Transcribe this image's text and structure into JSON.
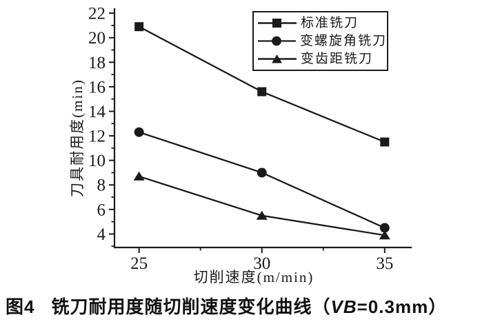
{
  "page": {
    "background": "#ffffff",
    "ink": "#1a1a1a"
  },
  "chart_data": {
    "type": "line",
    "title": "",
    "xlabel": "切削速度(m/min)",
    "ylabel": "刀具耐用度(min)",
    "x": [
      25,
      30,
      35
    ],
    "series": [
      {
        "name": "标准铣刀",
        "marker": "square",
        "values": [
          20.9,
          15.6,
          11.5
        ]
      },
      {
        "name": "变螺旋角铣刀",
        "marker": "circle",
        "values": [
          12.3,
          9.0,
          4.5
        ]
      },
      {
        "name": "变齿距铣刀",
        "marker": "triangle",
        "values": [
          8.7,
          5.5,
          3.9
        ]
      }
    ],
    "xlim": [
      24.0,
      36.1
    ],
    "ylim": [
      2.9,
      22.4
    ],
    "x_major_ticks": [
      25,
      30,
      35
    ],
    "x_minor_ticks": [
      27.5,
      32.5
    ],
    "y_major_ticks": [
      4,
      6,
      8,
      10,
      12,
      14,
      16,
      18,
      20,
      22
    ],
    "y_minor_ticks": [
      3,
      5,
      7,
      9,
      11,
      13,
      15,
      17,
      19,
      21
    ],
    "grid": false,
    "legend_position": "top-center-inside",
    "line_color": "#1a1a1a"
  },
  "caption": {
    "figure_label": "图4",
    "text": "铣刀耐用度随切削速度变化曲线",
    "paren_open": "（",
    "variable": "VB",
    "equation": "=0.3mm",
    "paren_close": "）"
  }
}
